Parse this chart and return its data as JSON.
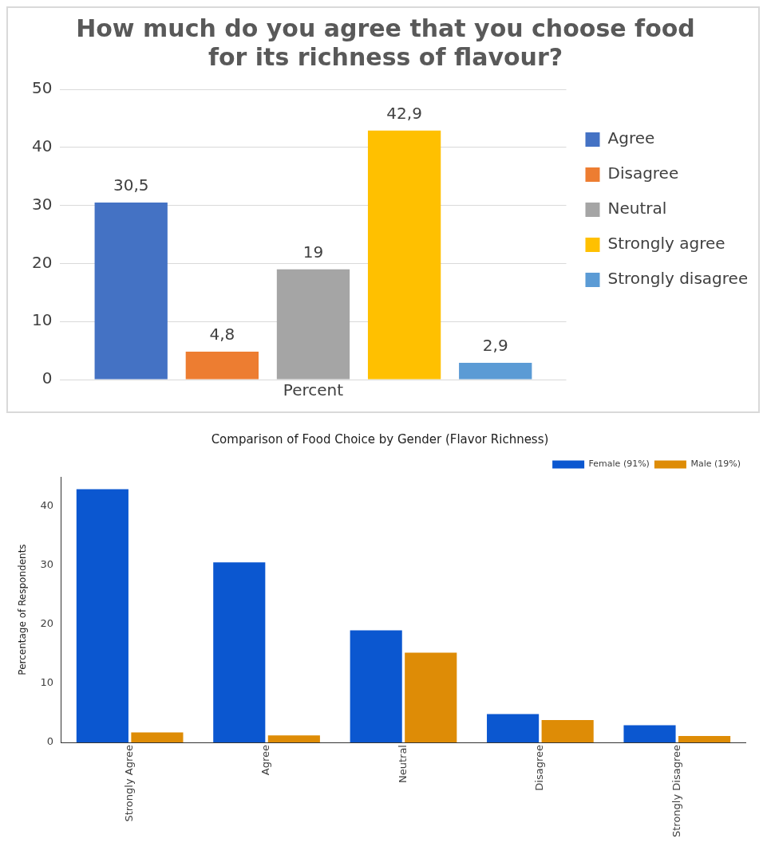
{
  "chart_data": [
    {
      "type": "bar",
      "title": "How much do you agree that you choose food for its richness of flavour?",
      "categories": [
        "Percent"
      ],
      "series": [
        {
          "name": "Agree",
          "color": "#4472c4",
          "values": [
            30.5
          ],
          "value_labels": [
            "30,5"
          ]
        },
        {
          "name": "Disagree",
          "color": "#ed7d31",
          "values": [
            4.8
          ],
          "value_labels": [
            "4,8"
          ]
        },
        {
          "name": "Neutral",
          "color": "#a5a5a5",
          "values": [
            19
          ],
          "value_labels": [
            "19"
          ]
        },
        {
          "name": "Strongly agree",
          "color": "#ffc000",
          "values": [
            42.9
          ],
          "value_labels": [
            "42,9"
          ]
        },
        {
          "name": "Strongly disagree",
          "color": "#5b9bd5",
          "values": [
            2.9
          ],
          "value_labels": [
            "2,9"
          ]
        }
      ],
      "ylim": [
        0,
        50
      ],
      "yticks": [
        0,
        10,
        20,
        30,
        40,
        50
      ],
      "grid": "y",
      "legend": "right"
    },
    {
      "type": "bar",
      "title": "Comparison of Food Choice by Gender (Flavor Richness)",
      "ylabel": "Percentage of Respondents",
      "categories": [
        "Strongly Agree",
        "Agree",
        "Neutral",
        "Disagree",
        "Strongly Disagree"
      ],
      "series": [
        {
          "name": "Female (91%)",
          "color": "#0b57d0",
          "values": [
            42.9,
            30.5,
            19,
            4.8,
            2.9
          ]
        },
        {
          "name": "Male (19%)",
          "color": "#de8c06",
          "values": [
            1.7,
            1.2,
            15.2,
            3.8,
            1.1
          ]
        }
      ],
      "ylim": [
        0,
        45
      ],
      "yticks": [
        0,
        10,
        20,
        30,
        40
      ],
      "grid": false,
      "legend": "top right"
    }
  ]
}
